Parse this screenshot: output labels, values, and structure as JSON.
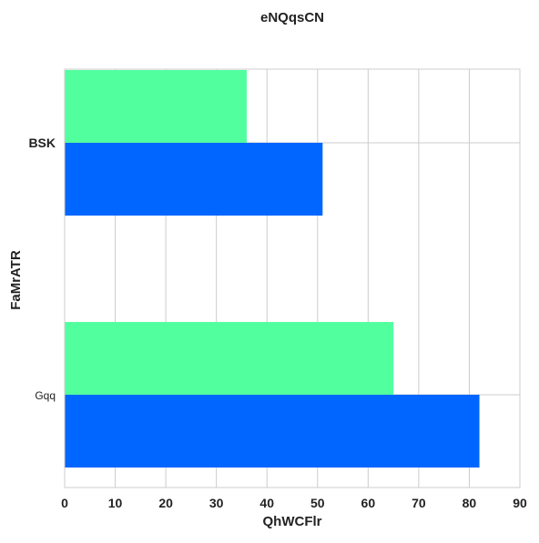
{
  "chart_data": {
    "type": "bar",
    "orientation": "horizontal",
    "title": "eNQqsCN",
    "xlabel": "QhWCFlr",
    "ylabel": "FaMrATR",
    "categories": [
      "BSK",
      "Gqq"
    ],
    "series": [
      {
        "values": [
          36,
          65
        ],
        "color": "#52ff9f"
      },
      {
        "values": [
          51,
          82
        ],
        "color": "#0066ff"
      }
    ],
    "xlim": [
      0,
      90
    ],
    "xticks": [
      0,
      10,
      20,
      30,
      40,
      50,
      60,
      70,
      80,
      90
    ],
    "grid": true,
    "legend": "none"
  }
}
